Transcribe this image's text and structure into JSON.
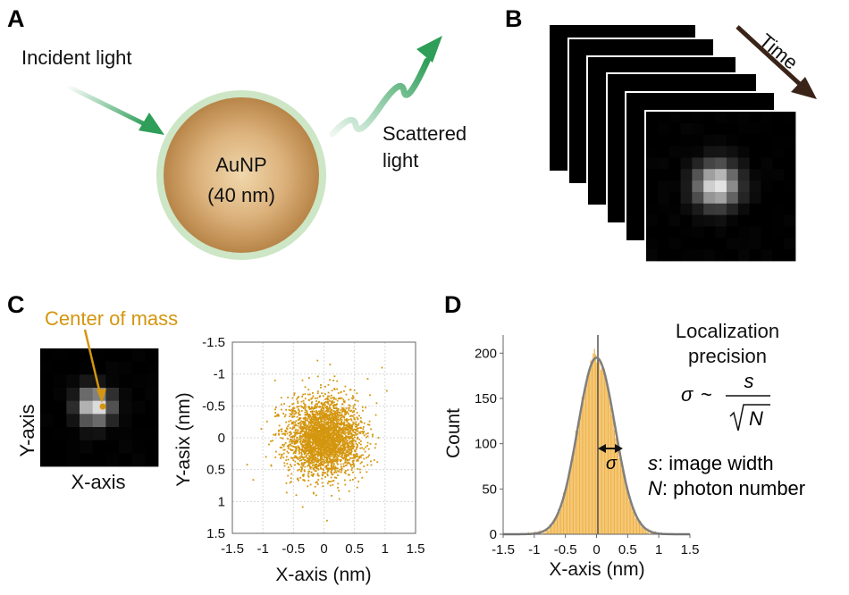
{
  "panels": {
    "a": {
      "label": "A",
      "incident": "Incident light",
      "particle_name": "AuNP",
      "particle_size": "(40 nm)",
      "scattered_line1": "Scattered",
      "scattered_line2": "light"
    },
    "b": {
      "label": "B",
      "time": "Time",
      "frame_count": 6
    },
    "c": {
      "label": "C",
      "center_label": "Center of mass",
      "y_axis_label": "Y-axis",
      "x_axis_label": "X-axis"
    },
    "d": {
      "label": "D",
      "title_line1": "Localization",
      "title_line2": "precision",
      "formula_sigma": "σ",
      "formula_tilde": "~",
      "formula_s": "s",
      "formula_n": "N",
      "sigma_mark": "σ",
      "legend_s_sym": "s",
      "legend_s_text": ": image width",
      "legend_n_sym": "N",
      "legend_n_text": ": photon number"
    }
  },
  "colors": {
    "gold": "#d4960f",
    "nanoparticle": "#c8965a",
    "halo": "#cde6c6",
    "green_arrow": "#2e9e58",
    "hist_bar": "#f0b040",
    "gauss_curve": "#7f7f7f"
  },
  "chart_data": [
    {
      "type": "scatter",
      "xlabel": "X-axis (nm)",
      "ylabel": "Y-asix (nm)",
      "xlim": [
        -1.5,
        1.5
      ],
      "ylim": [
        -1.5,
        1.5
      ],
      "y_inverted": true,
      "xticks": [
        -1.5,
        -1,
        -0.5,
        0,
        0.5,
        1,
        1.5
      ],
      "yticks": [
        -1.5,
        -1,
        -0.5,
        0,
        0.5,
        1,
        1.5
      ],
      "xtick_labels": [
        "-1.5",
        "-1",
        "-0.5",
        "0",
        "0.5",
        "1",
        "1.5"
      ],
      "ytick_labels": [
        "-1.5",
        "-1",
        "-0.5",
        "0",
        "0.5",
        "1",
        "1.5"
      ],
      "grid": true,
      "center": [
        0,
        0
      ],
      "spread_sd": 0.3,
      "approx_points": 3000,
      "sample_points": [
        [
          0.1,
          -1.15
        ],
        [
          0.95,
          -1.1
        ],
        [
          -0.8,
          -0.9
        ],
        [
          -0.4,
          0.5
        ],
        [
          0.6,
          0.4
        ],
        [
          0.2,
          0.3
        ],
        [
          0.45,
          -0.05
        ],
        [
          -0.95,
          0.3
        ],
        [
          0.05,
          1.3
        ],
        [
          0.85,
          0.1
        ]
      ]
    },
    {
      "type": "bar",
      "xlabel": "X-axis (nm)",
      "ylabel": "Count",
      "xlim": [
        -1.5,
        1.5
      ],
      "ylim": [
        0,
        220
      ],
      "xticks": [
        -1.5,
        -1,
        -0.5,
        0,
        0.5,
        1,
        1.5
      ],
      "yticks": [
        0,
        50,
        100,
        150,
        200
      ],
      "xtick_labels": [
        "-1.5",
        "-1",
        "-0.5",
        "0",
        "0.5",
        "1",
        "1.5"
      ],
      "ytick_labels": [
        "0",
        "50",
        "100",
        "150",
        "200"
      ],
      "bin_width": 0.02,
      "histogram_peak": 205,
      "fit": {
        "type": "gaussian",
        "mean": 0.0,
        "sigma": 0.3,
        "amplitude": 195
      }
    }
  ]
}
